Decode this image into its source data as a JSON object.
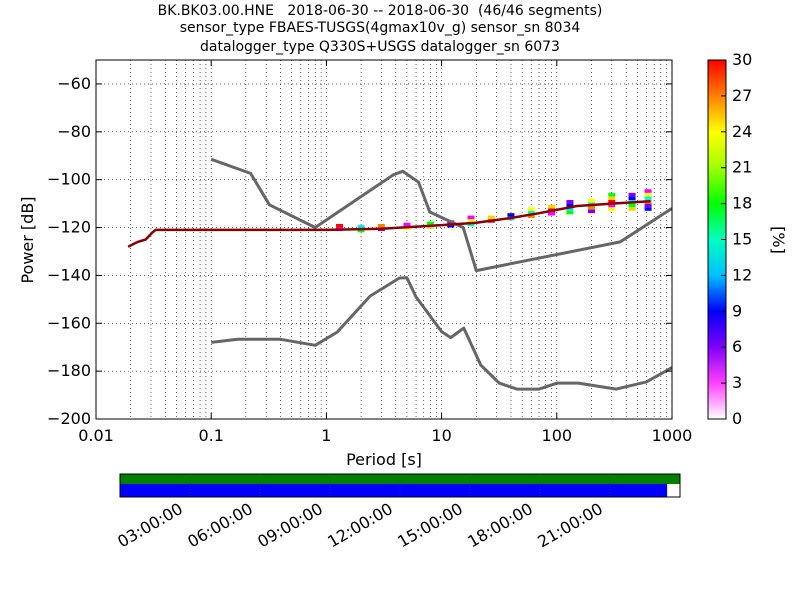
{
  "title": {
    "line1": "BK.BK03.00.HNE   2018-06-30 -- 2018-06-30  (46/46 segments)",
    "line2": "sensor_type FBAES-TUSGS(4gmax10v_g) sensor_sn 8034",
    "line3": "datalogger_type Q330S+USGS datalogger_sn 6073"
  },
  "chart_data": {
    "type": "line",
    "xlabel": "Period [s]",
    "ylabel": "Power [dB]",
    "xscale": "log",
    "xlim": [
      0.01,
      1000
    ],
    "ylim": [
      -200,
      -50
    ],
    "x_ticks": [
      "0.01",
      "0.1",
      "1",
      "10",
      "100",
      "1000"
    ],
    "y_ticks": [
      "−200",
      "−180",
      "−160",
      "−140",
      "−120",
      "−100",
      "−80",
      "−60"
    ],
    "grid": true,
    "colorbar": {
      "label": "[%]",
      "range": [
        0,
        30
      ],
      "ticks": [
        "0",
        "3",
        "6",
        "9",
        "12",
        "15",
        "18",
        "21",
        "24",
        "27",
        "30"
      ]
    },
    "series": [
      {
        "role": "noise-model-high",
        "color": "#666666",
        "points": [
          [
            0.1,
            -91.5
          ],
          [
            0.22,
            -97.4
          ],
          [
            0.32,
            -110.5
          ],
          [
            0.8,
            -120
          ],
          [
            3.8,
            -98
          ],
          [
            4.6,
            -96.5
          ],
          [
            6.3,
            -101
          ],
          [
            7.9,
            -113.5
          ],
          [
            15.4,
            -120
          ],
          [
            20,
            -138
          ],
          [
            354.8,
            -126
          ],
          [
            1000,
            -112
          ]
        ]
      },
      {
        "role": "noise-model-low",
        "color": "#666666",
        "points": [
          [
            0.1,
            -168
          ],
          [
            0.17,
            -166.7
          ],
          [
            0.4,
            -166.7
          ],
          [
            0.8,
            -169.2
          ],
          [
            1.24,
            -163.7
          ],
          [
            2.4,
            -148.6
          ],
          [
            4.3,
            -141.1
          ],
          [
            5,
            -141
          ],
          [
            6,
            -149
          ],
          [
            10,
            -163.5
          ],
          [
            12,
            -166
          ],
          [
            15.6,
            -162
          ],
          [
            21.9,
            -177.5
          ],
          [
            31.6,
            -185
          ],
          [
            45,
            -187.5
          ],
          [
            70,
            -187.5
          ],
          [
            101,
            -185
          ],
          [
            154,
            -185
          ],
          [
            328,
            -187.5
          ],
          [
            600,
            -184.5
          ],
          [
            1000,
            -178.5
          ]
        ]
      },
      {
        "role": "psd-mode",
        "color": "#8b0000",
        "points": [
          [
            0.019,
            -128
          ],
          [
            0.023,
            -126
          ],
          [
            0.027,
            -125
          ],
          [
            0.031,
            -122
          ],
          [
            0.033,
            -121
          ],
          [
            1,
            -121
          ],
          [
            3,
            -120.5
          ],
          [
            10,
            -119
          ],
          [
            20,
            -118
          ],
          [
            40,
            -116
          ],
          [
            70,
            -114
          ],
          [
            150,
            -111
          ],
          [
            300,
            -110
          ],
          [
            650,
            -109
          ]
        ]
      }
    ],
    "psd_spread": [
      {
        "period": 1.3,
        "lo": -121.5,
        "hi": -119.5
      },
      {
        "period": 2,
        "lo": -122,
        "hi": -119.5
      },
      {
        "period": 3,
        "lo": -121.5,
        "hi": -119.5
      },
      {
        "period": 5,
        "lo": -121,
        "hi": -118.5
      },
      {
        "period": 8,
        "lo": -120.5,
        "hi": -118.5
      },
      {
        "period": 12,
        "lo": -120,
        "hi": -117
      },
      {
        "period": 18,
        "lo": -119.5,
        "hi": -116
      },
      {
        "period": 27,
        "lo": -118,
        "hi": -115
      },
      {
        "period": 40,
        "lo": -117,
        "hi": -114
      },
      {
        "period": 60,
        "lo": -116,
        "hi": -112.5
      },
      {
        "period": 90,
        "lo": -115,
        "hi": -111
      },
      {
        "period": 130,
        "lo": -114.5,
        "hi": -109.5
      },
      {
        "period": 200,
        "lo": -114,
        "hi": -108
      },
      {
        "period": 300,
        "lo": -113,
        "hi": -106.5
      },
      {
        "period": 450,
        "lo": -113,
        "hi": -106
      },
      {
        "period": 620,
        "lo": -113,
        "hi": -105
      }
    ],
    "timeline": {
      "ticks": [
        "03:00:00",
        "06:00:00",
        "09:00:00",
        "12:00:00",
        "15:00:00",
        "18:00:00",
        "21:00:00"
      ],
      "data_fraction": 1.0,
      "psd_fraction": 0.977,
      "data_color": "#008000",
      "psd_color": "#0000ff"
    }
  }
}
